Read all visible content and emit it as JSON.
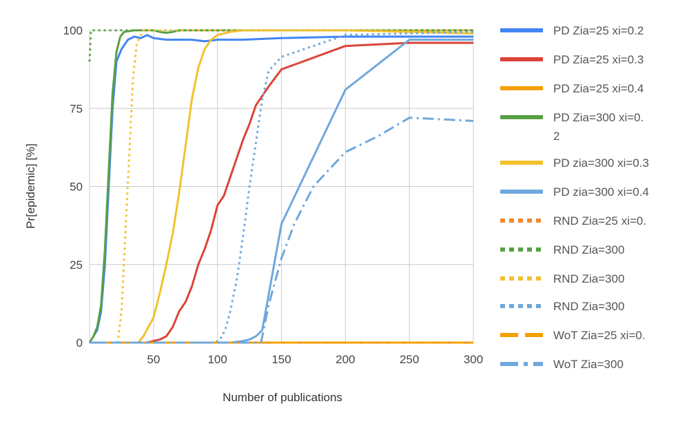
{
  "chart_data": {
    "type": "line",
    "title": "",
    "xlabel": "Number of publications",
    "ylabel": "Pr[epidemic] [%]",
    "xlim": [
      0,
      300
    ],
    "ylim": [
      0,
      100
    ],
    "x_ticks": [
      50,
      100,
      150,
      200,
      250,
      300
    ],
    "y_ticks": [
      0,
      25,
      50,
      75,
      100
    ],
    "grid": true,
    "legend_position": "right",
    "series": [
      {
        "name": "PD Zia=25 xi=0.2",
        "color": "#4285f4",
        "dash": "solid",
        "points": [
          [
            0,
            0
          ],
          [
            3,
            2
          ],
          [
            6,
            4
          ],
          [
            9,
            10
          ],
          [
            12,
            25
          ],
          [
            15,
            50
          ],
          [
            18,
            75
          ],
          [
            21,
            90
          ],
          [
            25,
            94
          ],
          [
            30,
            97
          ],
          [
            35,
            98
          ],
          [
            40,
            97.5
          ],
          [
            45,
            98.5
          ],
          [
            50,
            97.5
          ],
          [
            60,
            97
          ],
          [
            70,
            97
          ],
          [
            80,
            97
          ],
          [
            90,
            96.5
          ],
          [
            100,
            97
          ],
          [
            120,
            97
          ],
          [
            150,
            97.5
          ],
          [
            200,
            98
          ],
          [
            250,
            98
          ],
          [
            300,
            98
          ]
        ]
      },
      {
        "name": "PD Zia=25 xi=0.3",
        "color": "#db4437",
        "dash": "solid",
        "points": [
          [
            0,
            0
          ],
          [
            45,
            0
          ],
          [
            50,
            0.5
          ],
          [
            55,
            1
          ],
          [
            60,
            2
          ],
          [
            65,
            5
          ],
          [
            70,
            10
          ],
          [
            75,
            13
          ],
          [
            80,
            18
          ],
          [
            85,
            25
          ],
          [
            90,
            30
          ],
          [
            95,
            36
          ],
          [
            100,
            44
          ],
          [
            105,
            47
          ],
          [
            110,
            53
          ],
          [
            115,
            59
          ],
          [
            120,
            65
          ],
          [
            125,
            70
          ],
          [
            130,
            76
          ],
          [
            140,
            82
          ],
          [
            150,
            87.5
          ],
          [
            200,
            95
          ],
          [
            250,
            96
          ],
          [
            300,
            96
          ]
        ]
      },
      {
        "name": "PD Zia=25 xi=0.4",
        "color": "#f4a000",
        "dash": "solid",
        "points": [
          [
            0,
            0
          ],
          [
            100,
            0
          ],
          [
            200,
            0
          ],
          [
            300,
            0
          ]
        ]
      },
      {
        "name": "PD Zia=300 xi=0.2",
        "color": "#58a045",
        "dash": "solid",
        "points": [
          [
            0,
            0
          ],
          [
            3,
            2
          ],
          [
            6,
            5
          ],
          [
            9,
            12
          ],
          [
            12,
            30
          ],
          [
            15,
            55
          ],
          [
            18,
            80
          ],
          [
            21,
            93
          ],
          [
            24,
            98
          ],
          [
            27,
            99.5
          ],
          [
            35,
            100
          ],
          [
            50,
            100
          ],
          [
            55,
            99.5
          ],
          [
            60,
            99.2
          ],
          [
            65,
            99.5
          ],
          [
            70,
            100
          ],
          [
            300,
            100
          ]
        ]
      },
      {
        "name": "PD zia=300 xi=0.3",
        "color": "#f2c12e",
        "dash": "solid",
        "points": [
          [
            0,
            0
          ],
          [
            38,
            0
          ],
          [
            42,
            2
          ],
          [
            46,
            5
          ],
          [
            50,
            8
          ],
          [
            55,
            16
          ],
          [
            60,
            25
          ],
          [
            65,
            35
          ],
          [
            70,
            48
          ],
          [
            75,
            63
          ],
          [
            80,
            78
          ],
          [
            85,
            88
          ],
          [
            90,
            94
          ],
          [
            95,
            97
          ],
          [
            100,
            98.5
          ],
          [
            110,
            99.5
          ],
          [
            120,
            100
          ],
          [
            200,
            100
          ],
          [
            300,
            99
          ]
        ]
      },
      {
        "name": "PD zia=300 xi=0.4",
        "color": "#6fa8dc",
        "dash": "solid",
        "points": [
          [
            0,
            0
          ],
          [
            110,
            0
          ],
          [
            120,
            0.5
          ],
          [
            125,
            1
          ],
          [
            130,
            2
          ],
          [
            135,
            4
          ],
          [
            150,
            38
          ],
          [
            200,
            81
          ],
          [
            250,
            97
          ],
          [
            300,
            97
          ]
        ]
      },
      {
        "name": "RND Zia=25 xi=0.",
        "color": "#f18a2b",
        "dash": "dot",
        "points": [
          [
            0,
            0
          ],
          [
            150,
            0
          ],
          [
            300,
            0
          ]
        ]
      },
      {
        "name": "RND Zia=300",
        "color": "#58a045",
        "dash": "dot",
        "points": [
          [
            0,
            90
          ],
          [
            1,
            100
          ],
          [
            300,
            100
          ]
        ]
      },
      {
        "name": "RND Zia=300",
        "color": "#f2c12e",
        "dash": "dot",
        "points": [
          [
            0,
            0
          ],
          [
            22,
            0
          ],
          [
            25,
            10
          ],
          [
            28,
            35
          ],
          [
            31,
            60
          ],
          [
            34,
            85
          ],
          [
            37,
            96
          ],
          [
            42,
            100
          ],
          [
            300,
            100
          ]
        ]
      },
      {
        "name": "RND Zia=300",
        "color": "#6fa8dc",
        "dash": "dot",
        "points": [
          [
            0,
            0
          ],
          [
            98,
            0
          ],
          [
            102,
            1
          ],
          [
            106,
            4
          ],
          [
            110,
            10
          ],
          [
            115,
            20
          ],
          [
            120,
            34
          ],
          [
            125,
            50
          ],
          [
            130,
            64
          ],
          [
            135,
            78
          ],
          [
            140,
            87
          ],
          [
            150,
            91.5
          ],
          [
            200,
            98.5
          ],
          [
            250,
            99
          ],
          [
            300,
            99.5
          ]
        ]
      },
      {
        "name": "WoT Zia=25 xi=0.",
        "color": "#f4a000",
        "dash": "dash",
        "points": [
          [
            0,
            0
          ],
          [
            300,
            0
          ]
        ]
      },
      {
        "name": "WoT Zia=300",
        "color": "#6fa8dc",
        "dash": "dashdot",
        "points": [
          [
            0,
            0
          ],
          [
            134,
            0
          ],
          [
            140,
            12
          ],
          [
            150,
            27
          ],
          [
            160,
            38
          ],
          [
            175,
            50
          ],
          [
            200,
            61
          ],
          [
            225,
            66
          ],
          [
            250,
            72
          ],
          [
            275,
            71.5
          ],
          [
            300,
            71
          ]
        ]
      }
    ]
  }
}
